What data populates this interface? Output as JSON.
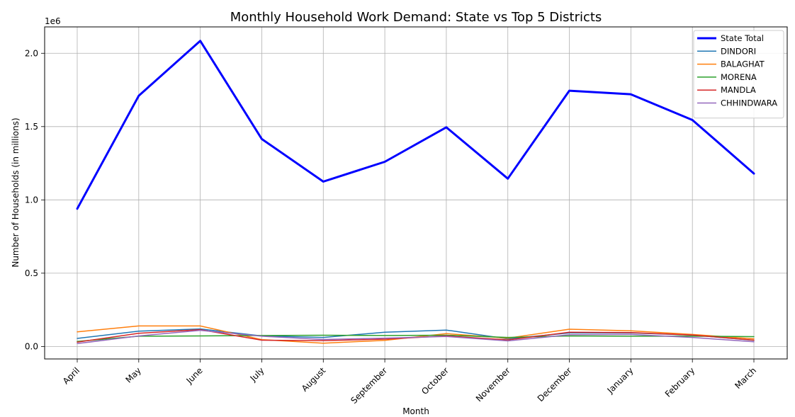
{
  "chart_data": {
    "type": "line",
    "title": "Monthly Household Work Demand: State vs Top 5 Districts",
    "xlabel": "Month",
    "ylabel": "Number of Households (in millions)",
    "offset_label": "1e6",
    "categories": [
      "April",
      "May",
      "June",
      "July",
      "August",
      "September",
      "October",
      "November",
      "December",
      "January",
      "February",
      "March"
    ],
    "ylim": [
      -85000,
      2180000
    ],
    "yticks": [
      0,
      500000,
      1000000,
      1500000,
      2000000
    ],
    "ytick_labels": [
      "0.0",
      "0.5",
      "1.0",
      "1.5",
      "2.0"
    ],
    "grid": true,
    "legend_position": "top-right",
    "series": [
      {
        "name": "State Total",
        "color": "#0000ff",
        "width": 3,
        "values": [
          940000,
          1710000,
          2085000,
          1415000,
          1125000,
          1260000,
          1495000,
          1145000,
          1745000,
          1720000,
          1545000,
          1180000
        ]
      },
      {
        "name": "DINDORI",
        "color": "#1f77b4",
        "width": 1.5,
        "values": [
          55000,
          105000,
          120000,
          72000,
          62000,
          97000,
          112000,
          52000,
          92000,
          92000,
          78000,
          42000
        ]
      },
      {
        "name": "BALAGHAT",
        "color": "#ff7f0e",
        "width": 1.5,
        "values": [
          100000,
          140000,
          140000,
          47000,
          22000,
          42000,
          88000,
          57000,
          118000,
          107000,
          82000,
          52000
        ]
      },
      {
        "name": "MORENA",
        "color": "#2ca02c",
        "width": 1.5,
        "values": [
          35000,
          70000,
          72000,
          75000,
          77000,
          75000,
          77000,
          62000,
          72000,
          70000,
          70000,
          67000
        ]
      },
      {
        "name": "MANDLA",
        "color": "#d62728",
        "width": 1.5,
        "values": [
          30000,
          90000,
          115000,
          43000,
          40000,
          50000,
          72000,
          45000,
          97000,
          95000,
          78000,
          43000
        ]
      },
      {
        "name": "CHHINDWARA",
        "color": "#9467bd",
        "width": 1.5,
        "values": [
          20000,
          72000,
          110000,
          70000,
          48000,
          57000,
          68000,
          38000,
          80000,
          82000,
          62000,
          32000
        ]
      }
    ]
  }
}
